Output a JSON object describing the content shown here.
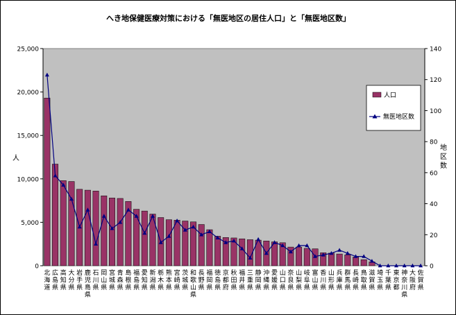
{
  "chart_data": {
    "type": "bar+line",
    "title": "へき地保健医療対策における「無医地区の居住人口」と「無医地区数」",
    "ylabel_left": "人",
    "ylabel_right": "地区数",
    "ylim_left": [
      0,
      25000
    ],
    "ylim_right": [
      0,
      140
    ],
    "left_ticks": [
      "0",
      "5,000",
      "10,000",
      "15,000",
      "20,000",
      "25,000"
    ],
    "right_ticks": [
      "0",
      "20",
      "40",
      "60",
      "80",
      "100",
      "120",
      "140"
    ],
    "grid": false,
    "legend_position": "right",
    "colors": {
      "plot_bg": "#c0c0c0",
      "bar": "#993366",
      "line": "#000080"
    },
    "categories": [
      "北海道",
      "広島県",
      "高知県",
      "大分県",
      "岩手県",
      "鹿児島県",
      "石川県",
      "岡山県",
      "宮城県",
      "青森県",
      "島根県",
      "福島県",
      "愛知県",
      "新潟県",
      "栃木県",
      "熊本県",
      "宮崎県",
      "茨城県",
      "和歌山県",
      "長野県",
      "福岡県",
      "徳島県",
      "京都府",
      "秋田県",
      "福井県",
      "三重県",
      "静岡県",
      "沖縄県",
      "愛媛県",
      "山口県",
      "奈良県",
      "山梨県",
      "岐阜県",
      "富山県",
      "香川県",
      "山形県",
      "兵庫県",
      "群馬県",
      "長崎県",
      "鳥取県",
      "滋賀県",
      "埼玉県",
      "千葉県",
      "東京都",
      "神奈川県",
      "大阪府",
      "佐賀県"
    ],
    "series": [
      {
        "name": "人口",
        "type": "bar",
        "axis": "left",
        "values": [
          19300,
          11700,
          9800,
          9700,
          8800,
          8700,
          8600,
          8050,
          7800,
          7750,
          7400,
          6500,
          6300,
          5950,
          5550,
          5300,
          5250,
          5150,
          5050,
          4750,
          4150,
          3400,
          3250,
          3200,
          3100,
          3000,
          2950,
          2850,
          2750,
          2650,
          2150,
          2150,
          2000,
          1950,
          1500,
          1450,
          1350,
          1250,
          1000,
          700,
          450,
          0,
          0,
          0,
          0,
          0,
          0
        ]
      },
      {
        "name": "無医地区数",
        "type": "line",
        "axis": "right",
        "values": [
          123,
          58,
          52,
          43,
          25,
          36,
          14,
          32,
          24,
          28,
          36,
          32,
          21,
          32,
          15,
          19,
          29,
          23,
          25,
          20,
          22,
          18,
          15,
          16,
          11,
          5,
          17,
          8,
          15,
          13,
          9,
          13,
          13,
          6,
          7,
          8,
          10,
          8,
          6,
          6,
          3,
          0,
          0,
          0,
          0,
          0,
          0
        ]
      }
    ]
  }
}
